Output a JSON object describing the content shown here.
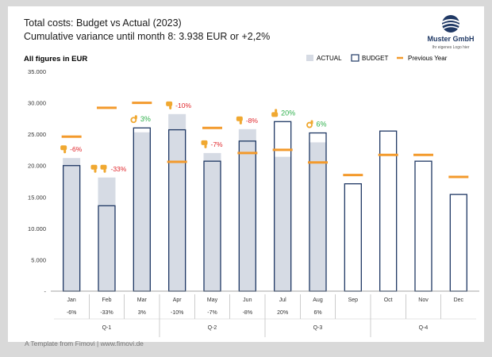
{
  "header": {
    "title": "Total costs: Budget vs Actual (2023)",
    "subtitle": "Cumulative variance until month 8: 3.938  EUR or +2,2%",
    "units": "All figures in EUR"
  },
  "logo": {
    "name": "Muster GmbH",
    "tagline": "Ihr eigenes Logo hier"
  },
  "footer": {
    "text": "A Template from Fimovi  |  www.fimovi.de"
  },
  "colors": {
    "actual": "#d6dbe4",
    "budget_stroke": "#1f3864",
    "previous_year": "#f39a2c",
    "negative": "#e0262b",
    "positive": "#2fb04c",
    "thumb": "#f0a830"
  },
  "chart_data": {
    "type": "bar",
    "categories": [
      "Jan",
      "Feb",
      "Mar",
      "Apr",
      "May",
      "Jun",
      "Jul",
      "Aug",
      "Sep",
      "Oct",
      "Nov",
      "Dec"
    ],
    "series": [
      {
        "name": "ACTUAL",
        "values": [
          21200,
          18100,
          25300,
          28200,
          22000,
          25800,
          21400,
          23700,
          null,
          null,
          null,
          null
        ]
      },
      {
        "name": "BUDGET",
        "values": [
          20000,
          13600,
          26000,
          25700,
          20700,
          23900,
          27000,
          25200,
          17100,
          25500,
          20700,
          15400
        ]
      },
      {
        "name": "Previous Year",
        "values": [
          24600,
          29200,
          30000,
          20600,
          26000,
          22000,
          22500,
          20500,
          18500,
          21700,
          21700,
          18200
        ]
      }
    ],
    "variance_labels": [
      "-6%",
      "-33%",
      "3%",
      "-10%",
      "-7%",
      "-8%",
      "20%",
      "6%",
      "",
      "",
      "",
      ""
    ],
    "variance_icons": [
      "thumb-down",
      "double-thumb-down",
      "ok-hand",
      "thumb-down",
      "thumb-down",
      "thumb-down",
      "thumb-up",
      "ok-hand",
      "",
      "",
      "",
      ""
    ],
    "quarters": [
      "Q-1",
      "Q-2",
      "Q-3",
      "Q-4"
    ],
    "yticks": [
      "-",
      "5.000",
      "10.000",
      "15.000",
      "20.000",
      "25.000",
      "30.000",
      "35.000"
    ],
    "ylim": [
      0,
      35000
    ],
    "legend": [
      "ACTUAL",
      "BUDGET",
      "Previous Year"
    ],
    "legend_position": "top-right",
    "grid": false
  }
}
